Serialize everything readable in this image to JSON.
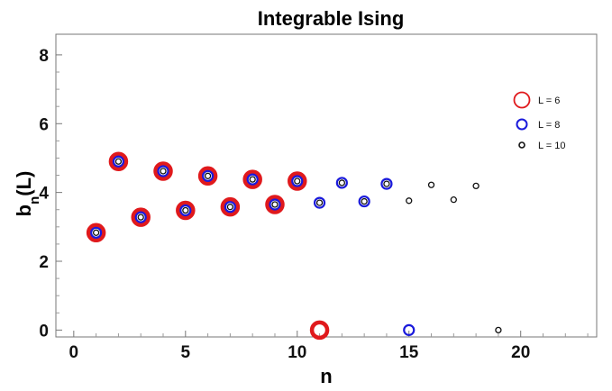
{
  "chart_data": {
    "type": "scatter",
    "title": "Integrable Ising",
    "xlabel": "n",
    "ylabel": {
      "base": "b",
      "sub": "n",
      "suffix": "(L)"
    },
    "xlim": [
      -0.8,
      23.4
    ],
    "ylim": [
      -0.2,
      8.6
    ],
    "xticks": [
      0,
      5,
      10,
      15,
      20
    ],
    "yticks": [
      0,
      2,
      4,
      6,
      8
    ],
    "frame": true,
    "grid": false,
    "legend_position": "right",
    "series": [
      {
        "name": "L = 6",
        "color": "#e0191c",
        "marker": "thick-ring-large",
        "points": [
          [
            1,
            2.83
          ],
          [
            2,
            4.9
          ],
          [
            3,
            3.28
          ],
          [
            4,
            4.62
          ],
          [
            5,
            3.48
          ],
          [
            6,
            4.48
          ],
          [
            7,
            3.58
          ],
          [
            8,
            4.38
          ],
          [
            9,
            3.65
          ],
          [
            10,
            4.33
          ],
          [
            11,
            0.0
          ]
        ]
      },
      {
        "name": "L = 8",
        "color": "#1a1adb",
        "marker": "ring-medium",
        "points": [
          [
            1,
            2.83
          ],
          [
            2,
            4.9
          ],
          [
            3,
            3.28
          ],
          [
            4,
            4.62
          ],
          [
            5,
            3.48
          ],
          [
            6,
            4.48
          ],
          [
            7,
            3.58
          ],
          [
            8,
            4.38
          ],
          [
            9,
            3.65
          ],
          [
            10,
            4.33
          ],
          [
            11,
            3.7
          ],
          [
            12,
            4.28
          ],
          [
            13,
            3.74
          ],
          [
            14,
            4.25
          ],
          [
            15,
            0.0
          ]
        ]
      },
      {
        "name": "L = 10",
        "color": "#111111",
        "marker": "ring-small",
        "points": [
          [
            1,
            2.83
          ],
          [
            2,
            4.9
          ],
          [
            3,
            3.28
          ],
          [
            4,
            4.62
          ],
          [
            5,
            3.48
          ],
          [
            6,
            4.48
          ],
          [
            7,
            3.58
          ],
          [
            8,
            4.38
          ],
          [
            9,
            3.65
          ],
          [
            10,
            4.33
          ],
          [
            11,
            3.7
          ],
          [
            12,
            4.28
          ],
          [
            13,
            3.74
          ],
          [
            14,
            4.25
          ],
          [
            15,
            3.76
          ],
          [
            16,
            4.22
          ],
          [
            17,
            3.79
          ],
          [
            18,
            4.19
          ],
          [
            19,
            0.0
          ]
        ]
      }
    ]
  }
}
